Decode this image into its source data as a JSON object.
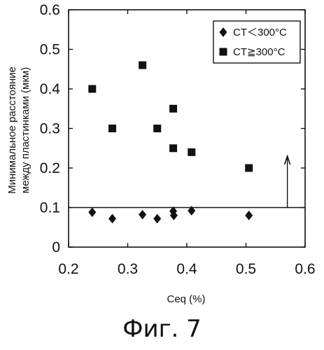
{
  "caption": "Фиг. 7",
  "chart_data": {
    "type": "scatter",
    "xlabel": "Ceq (%)",
    "ylabel": "Минимальное расстояние\nмежду пластинками (мкм)",
    "xlim": [
      0.2,
      0.6
    ],
    "ylim": [
      0,
      0.6
    ],
    "xticks": [
      "0.2",
      "0.3",
      "0.4",
      "0.5",
      "0.6"
    ],
    "yticks": [
      "0",
      "0.1",
      "0.2",
      "0.3",
      "0.4",
      "0.5",
      "0.6"
    ],
    "grid": false,
    "legend_position": "top-right",
    "series": [
      {
        "name": "CT＜300°C",
        "marker": "diamond",
        "color": "#111111",
        "points": [
          {
            "x": 0.24,
            "y": 0.088
          },
          {
            "x": 0.274,
            "y": 0.072
          },
          {
            "x": 0.325,
            "y": 0.082
          },
          {
            "x": 0.35,
            "y": 0.072
          },
          {
            "x": 0.377,
            "y": 0.091
          },
          {
            "x": 0.378,
            "y": 0.08
          },
          {
            "x": 0.408,
            "y": 0.092
          },
          {
            "x": 0.505,
            "y": 0.08
          }
        ]
      },
      {
        "name": "CT≧300°C",
        "marker": "square",
        "color": "#111111",
        "points": [
          {
            "x": 0.24,
            "y": 0.4
          },
          {
            "x": 0.274,
            "y": 0.3
          },
          {
            "x": 0.325,
            "y": 0.46
          },
          {
            "x": 0.35,
            "y": 0.3
          },
          {
            "x": 0.377,
            "y": 0.35
          },
          {
            "x": 0.377,
            "y": 0.25
          },
          {
            "x": 0.408,
            "y": 0.24
          },
          {
            "x": 0.505,
            "y": 0.2
          }
        ]
      }
    ],
    "reference_line_y": 0.1,
    "arrow": {
      "x": 0.57,
      "y_from": 0.1,
      "y_to": 0.23
    }
  }
}
